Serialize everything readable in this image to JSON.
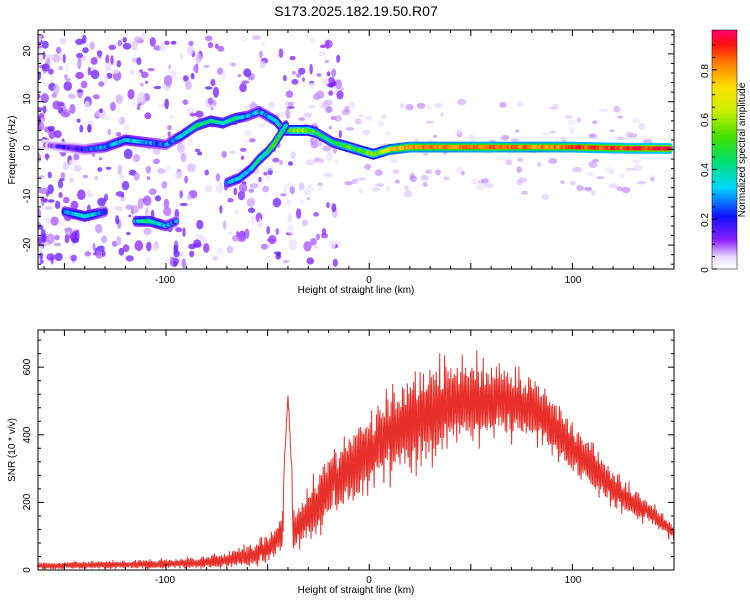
{
  "title": "S173.2025.182.19.50.R07",
  "chart_data": [
    {
      "type": "heatmap",
      "xlabel": "Height of straight line (km)",
      "ylabel": "Frequency (Hz)",
      "xlim": [
        -163,
        150
      ],
      "ylim": [
        -25,
        25
      ],
      "xticks": [
        -100,
        0,
        100
      ],
      "yticks": [
        -20,
        -10,
        0,
        10,
        20
      ],
      "colorbar": {
        "label": "Normalized spectral amplitude",
        "range": [
          0,
          0.96
        ],
        "ticks": [
          0.0,
          0.2,
          0.4,
          0.6,
          0.8
        ]
      },
      "ridges": [
        {
          "x": [
            -160,
            -150,
            -140,
            -130,
            -120,
            -110,
            -100,
            -92,
            -85,
            -78,
            -72,
            -66,
            -60,
            -54,
            -50,
            -46,
            -42,
            -38,
            -34,
            -30,
            -26,
            -22,
            -18,
            -14,
            -10,
            -6,
            -2,
            2,
            6,
            10,
            20,
            40,
            60,
            80,
            100,
            120,
            148
          ],
          "f": [
            1,
            0.5,
            0,
            0.5,
            2,
            1.5,
            1,
            3,
            5,
            6,
            5.5,
            6.5,
            7,
            8,
            7,
            6,
            4,
            4,
            4,
            4,
            3.5,
            2.5,
            1.5,
            1,
            0.5,
            0,
            -0.5,
            -1,
            -0.5,
            0,
            0.5,
            0.5,
            0.5,
            0.5,
            0.5,
            0.3,
            0.2
          ],
          "amp": [
            0.1,
            0.15,
            0.2,
            0.3,
            0.35,
            0.3,
            0.25,
            0.35,
            0.45,
            0.4,
            0.4,
            0.45,
            0.3,
            0.3,
            0.3,
            0.35,
            0.4,
            0.55,
            0.65,
            0.6,
            0.5,
            0.45,
            0.45,
            0.5,
            0.55,
            0.5,
            0.55,
            0.6,
            0.65,
            0.75,
            0.85,
            0.85,
            0.9,
            0.85,
            0.9,
            0.92,
            0.95
          ]
        },
        {
          "x": [
            -70,
            -64,
            -58,
            -54,
            -50,
            -47,
            -44,
            -41
          ],
          "f": [
            -7,
            -6,
            -4,
            -2,
            -0.5,
            1,
            3,
            5
          ],
          "amp": [
            0.3,
            0.35,
            0.35,
            0.4,
            0.45,
            0.5,
            0.45,
            0.4
          ]
        },
        {
          "x": [
            -150,
            -145,
            -140,
            -135,
            -130
          ],
          "f": [
            -13,
            -13.5,
            -14,
            -13.5,
            -13
          ],
          "amp": [
            0.3,
            0.35,
            0.4,
            0.35,
            0.25
          ]
        },
        {
          "x": [
            -115,
            -108,
            -100,
            -95
          ],
          "f": [
            -15,
            -15,
            -16,
            -15
          ],
          "amp": [
            0.3,
            0.45,
            0.3,
            0.25
          ]
        }
      ]
    },
    {
      "type": "line",
      "xlabel": "Height of straight line (km)",
      "ylabel": "SNR (10 * v/v)",
      "xlim": [
        -163,
        150
      ],
      "ylim": [
        0,
        710
      ],
      "xticks": [
        -100,
        0,
        100
      ],
      "yticks": [
        0,
        200,
        400,
        600
      ],
      "color": "#e8302a",
      "envelope": {
        "x": [
          -163,
          -140,
          -120,
          -100,
          -80,
          -70,
          -60,
          -50,
          -45,
          -40,
          -36,
          -30,
          -25,
          -20,
          -10,
          0,
          10,
          20,
          30,
          40,
          50,
          60,
          70,
          80,
          90,
          100,
          110,
          120,
          130,
          140,
          150
        ],
        "mean": [
          12,
          14,
          16,
          18,
          22,
          30,
          40,
          60,
          100,
          140,
          120,
          160,
          200,
          250,
          300,
          350,
          400,
          440,
          470,
          490,
          500,
          500,
          500,
          480,
          430,
          360,
          300,
          240,
          200,
          160,
          110
        ],
        "amp": [
          10,
          12,
          14,
          16,
          20,
          25,
          35,
          45,
          60,
          80,
          60,
          80,
          100,
          110,
          120,
          130,
          140,
          150,
          150,
          140,
          130,
          120,
          110,
          100,
          90,
          80,
          70,
          55,
          45,
          35,
          25
        ]
      },
      "peak": {
        "x": -40,
        "y": 525
      }
    }
  ]
}
